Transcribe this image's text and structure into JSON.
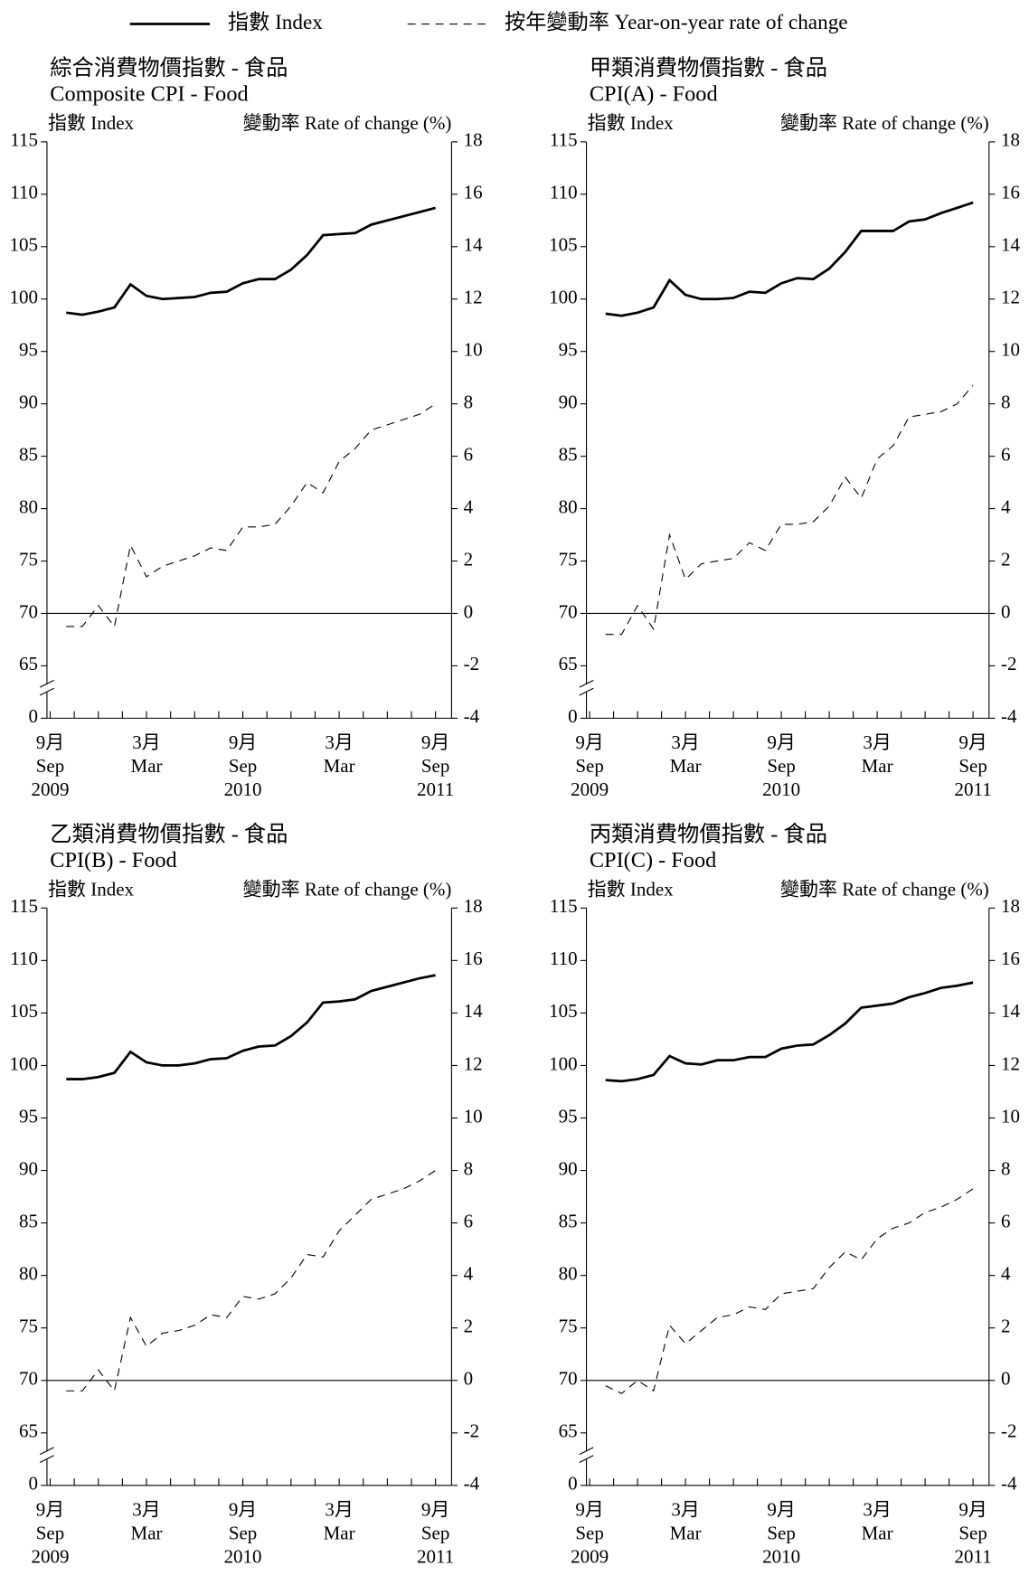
{
  "chart_data": [
    {
      "type": "line",
      "title": "綜合消費物價指數 - 食品",
      "subtitle": "Composite CPI - Food",
      "ylabel": "指數 Index",
      "y2label": "變動率 Rate of change (%)",
      "categories": [
        {
          "zh": "9月",
          "en": "Sep",
          "year": "2009"
        },
        null,
        null,
        null,
        null,
        null,
        {
          "zh": "3月",
          "en": "Mar"
        },
        null,
        null,
        null,
        null,
        null,
        {
          "zh": "9月",
          "en": "Sep",
          "year": "2010"
        },
        null,
        null,
        null,
        null,
        null,
        {
          "zh": "3月",
          "en": "Mar"
        },
        null,
        null,
        null,
        null,
        null,
        {
          "zh": "9月",
          "en": "Sep",
          "year": "2011"
        }
      ],
      "xticks": [
        0,
        1.5,
        3,
        4.5,
        6,
        7.5,
        9,
        10.5,
        12,
        13.5,
        15,
        16.5,
        18,
        19.5,
        21,
        22.5,
        24
      ],
      "ylim": [
        60,
        115
      ],
      "yticks": [
        0,
        65,
        70,
        75,
        80,
        85,
        90,
        95,
        100,
        105,
        110,
        115
      ],
      "y_break": true,
      "y2lim": [
        -4,
        18
      ],
      "y2ticks": [
        -4,
        -2,
        0,
        2,
        4,
        6,
        8,
        10,
        12,
        14,
        16,
        18
      ],
      "series": [
        {
          "name": "指數 Index",
          "color": "#000000",
          "style": "solid",
          "values": [
            null,
            98.7,
            98.5,
            98.8,
            99.2,
            101.4,
            100.3,
            100.0,
            100.1,
            100.2,
            100.6,
            100.7,
            101.5,
            101.9,
            101.9,
            102.8,
            104.2,
            106.1,
            106.2,
            106.3,
            107.1,
            107.5,
            107.9,
            108.3,
            108.7
          ]
        },
        {
          "name": "按年變動率 Year-on-year rate of change",
          "color": "#000000",
          "style": "dashed",
          "axis": "y2",
          "values": [
            null,
            -0.5,
            -0.5,
            0.3,
            -0.5,
            2.6,
            1.4,
            1.8,
            2.0,
            2.2,
            2.5,
            2.4,
            3.3,
            3.3,
            3.4,
            4.1,
            5.0,
            4.6,
            5.8,
            6.3,
            7.0,
            7.2,
            7.4,
            7.6,
            8.0
          ]
        }
      ]
    },
    {
      "type": "line",
      "title": "甲類消費物價指數 - 食品",
      "subtitle": "CPI(A) - Food",
      "ylabel": "指數 Index",
      "y2label": "變動率 Rate of change (%)",
      "categories": [
        {
          "zh": "9月",
          "en": "Sep",
          "year": "2009"
        },
        null,
        null,
        null,
        null,
        null,
        {
          "zh": "3月",
          "en": "Mar"
        },
        null,
        null,
        null,
        null,
        null,
        {
          "zh": "9月",
          "en": "Sep",
          "year": "2010"
        },
        null,
        null,
        null,
        null,
        null,
        {
          "zh": "3月",
          "en": "Mar"
        },
        null,
        null,
        null,
        null,
        null,
        {
          "zh": "9月",
          "en": "Sep",
          "year": "2011"
        }
      ],
      "xticks": [
        0,
        1.5,
        3,
        4.5,
        6,
        7.5,
        9,
        10.5,
        12,
        13.5,
        15,
        16.5,
        18,
        19.5,
        21,
        22.5,
        24
      ],
      "ylim": [
        60,
        115
      ],
      "yticks": [
        0,
        65,
        70,
        75,
        80,
        85,
        90,
        95,
        100,
        105,
        110,
        115
      ],
      "y_break": true,
      "y2lim": [
        -4,
        18
      ],
      "y2ticks": [
        -4,
        -2,
        0,
        2,
        4,
        6,
        8,
        10,
        12,
        14,
        16,
        18
      ],
      "series": [
        {
          "color": "#000000",
          "style": "solid",
          "values": [
            null,
            98.6,
            98.4,
            98.7,
            99.2,
            101.8,
            100.4,
            100.0,
            100.0,
            100.1,
            100.7,
            100.6,
            101.5,
            102.0,
            101.9,
            102.9,
            104.5,
            106.5,
            106.5,
            106.5,
            107.4,
            107.6,
            108.2,
            108.7,
            109.2
          ]
        },
        {
          "color": "#000000",
          "style": "dashed",
          "axis": "y2",
          "values": [
            null,
            -0.8,
            -0.8,
            0.3,
            -0.6,
            3.0,
            1.3,
            1.9,
            2.0,
            2.1,
            2.7,
            2.4,
            3.4,
            3.4,
            3.5,
            4.1,
            5.2,
            4.4,
            5.9,
            6.4,
            7.5,
            7.6,
            7.7,
            8.0,
            8.7
          ]
        }
      ]
    },
    {
      "type": "line",
      "title": "乙類消費物價指數 - 食品",
      "subtitle": "CPI(B) - Food",
      "ylabel": "指數 Index",
      "y2label": "變動率 Rate of change (%)",
      "categories": [
        {
          "zh": "9月",
          "en": "Sep",
          "year": "2009"
        },
        null,
        null,
        null,
        null,
        null,
        {
          "zh": "3月",
          "en": "Mar"
        },
        null,
        null,
        null,
        null,
        null,
        {
          "zh": "9月",
          "en": "Sep",
          "year": "2010"
        },
        null,
        null,
        null,
        null,
        null,
        {
          "zh": "3月",
          "en": "Mar"
        },
        null,
        null,
        null,
        null,
        null,
        {
          "zh": "9月",
          "en": "Sep",
          "year": "2011"
        }
      ],
      "xticks": [
        0,
        1.5,
        3,
        4.5,
        6,
        7.5,
        9,
        10.5,
        12,
        13.5,
        15,
        16.5,
        18,
        19.5,
        21,
        22.5,
        24
      ],
      "ylim": [
        60,
        115
      ],
      "yticks": [
        0,
        65,
        70,
        75,
        80,
        85,
        90,
        95,
        100,
        105,
        110,
        115
      ],
      "y_break": true,
      "y2lim": [
        -4,
        18
      ],
      "y2ticks": [
        -4,
        -2,
        0,
        2,
        4,
        6,
        8,
        10,
        12,
        14,
        16,
        18
      ],
      "series": [
        {
          "color": "#000000",
          "style": "solid",
          "values": [
            null,
            98.7,
            98.7,
            98.9,
            99.3,
            101.3,
            100.3,
            100.0,
            100.0,
            100.2,
            100.6,
            100.7,
            101.4,
            101.8,
            101.9,
            102.8,
            104.1,
            106.0,
            106.1,
            106.3,
            107.1,
            107.5,
            107.9,
            108.3,
            108.6
          ]
        },
        {
          "color": "#000000",
          "style": "dashed",
          "axis": "y2",
          "values": [
            null,
            -0.4,
            -0.4,
            0.4,
            -0.4,
            2.4,
            1.3,
            1.8,
            1.9,
            2.1,
            2.5,
            2.4,
            3.2,
            3.1,
            3.3,
            3.9,
            4.8,
            4.7,
            5.7,
            6.3,
            6.9,
            7.1,
            7.3,
            7.6,
            8.0
          ]
        }
      ]
    },
    {
      "type": "line",
      "title": "丙類消費物價指數 - 食品",
      "subtitle": "CPI(C) - Food",
      "ylabel": "指數 Index",
      "y2label": "變動率 Rate of change (%)",
      "categories": [
        {
          "zh": "9月",
          "en": "Sep",
          "year": "2009"
        },
        null,
        null,
        null,
        null,
        null,
        {
          "zh": "3月",
          "en": "Mar"
        },
        null,
        null,
        null,
        null,
        null,
        {
          "zh": "9月",
          "en": "Sep",
          "year": "2010"
        },
        null,
        null,
        null,
        null,
        null,
        {
          "zh": "3月",
          "en": "Mar"
        },
        null,
        null,
        null,
        null,
        null,
        {
          "zh": "9月",
          "en": "Sep",
          "year": "2011"
        }
      ],
      "xticks": [
        0,
        1.5,
        3,
        4.5,
        6,
        7.5,
        9,
        10.5,
        12,
        13.5,
        15,
        16.5,
        18,
        19.5,
        21,
        22.5,
        24
      ],
      "ylim": [
        60,
        115
      ],
      "yticks": [
        0,
        65,
        70,
        75,
        80,
        85,
        90,
        95,
        100,
        105,
        110,
        115
      ],
      "y_break": true,
      "y2lim": [
        -4,
        18
      ],
      "y2ticks": [
        -4,
        -2,
        0,
        2,
        4,
        6,
        8,
        10,
        12,
        14,
        16,
        18
      ],
      "series": [
        {
          "color": "#000000",
          "style": "solid",
          "values": [
            null,
            98.6,
            98.5,
            98.7,
            99.1,
            100.9,
            100.2,
            100.1,
            100.5,
            100.5,
            100.8,
            100.8,
            101.6,
            101.9,
            102.0,
            102.9,
            104.0,
            105.5,
            105.7,
            105.9,
            106.5,
            106.9,
            107.4,
            107.6,
            107.9
          ]
        },
        {
          "color": "#000000",
          "style": "dashed",
          "axis": "y2",
          "values": [
            null,
            -0.2,
            -0.5,
            0.0,
            -0.4,
            2.1,
            1.4,
            1.9,
            2.4,
            2.5,
            2.8,
            2.7,
            3.3,
            3.4,
            3.5,
            4.3,
            4.9,
            4.6,
            5.4,
            5.8,
            6.0,
            6.4,
            6.6,
            6.9,
            7.3
          ]
        }
      ]
    }
  ]
}
